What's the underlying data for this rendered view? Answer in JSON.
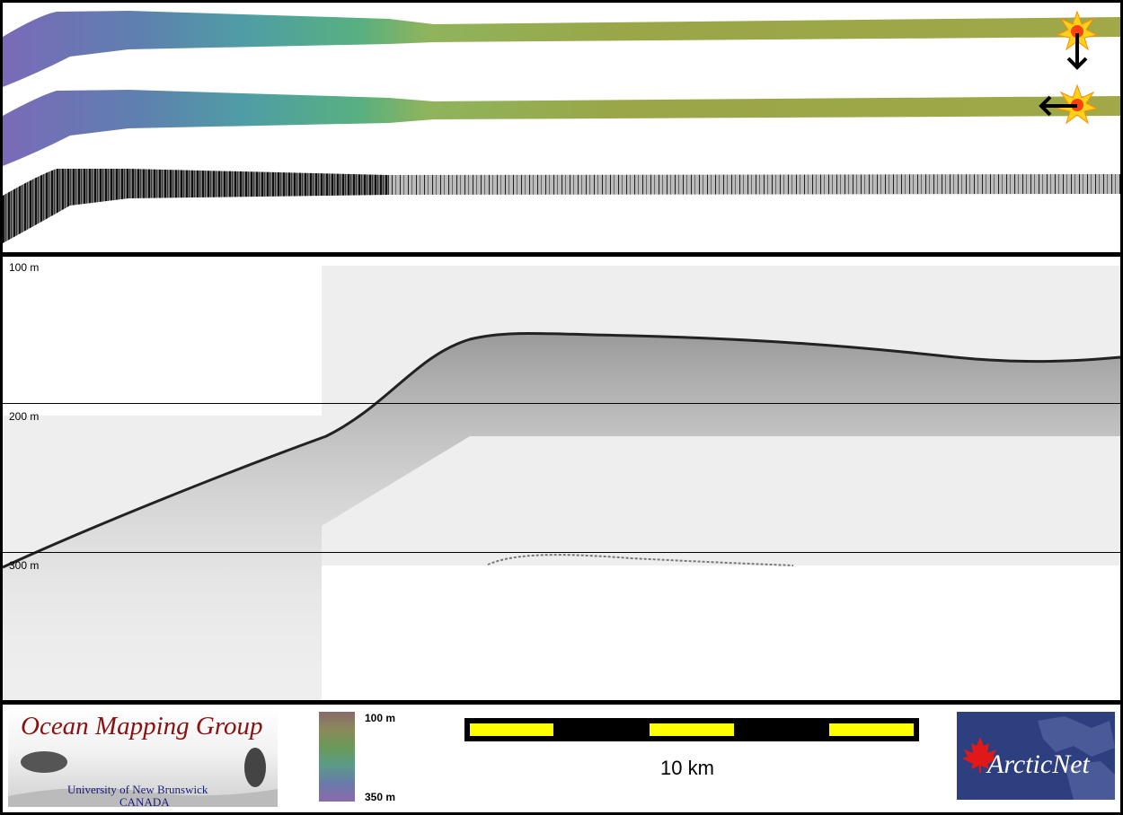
{
  "profile": {
    "depth_labels": [
      "100 m",
      "200 m",
      "300 m"
    ]
  },
  "footer": {
    "logo": {
      "title": "Ocean Mapping Group",
      "university": "University of New Brunswick",
      "country": "CANADA"
    },
    "colorbar": {
      "top_label": "100 m",
      "bottom_label": "350 m"
    },
    "scalebar": {
      "label": "10 km"
    },
    "partner_logo": {
      "text": "ArcticNet"
    }
  },
  "colors": {
    "frame": "#000000",
    "panel": "#ffffff",
    "sonar_background": "#eeeeee",
    "scalebar_fill": "#ffff00",
    "scalebar_dark": "#000000",
    "logo_title": "#8b1010",
    "arcticnet_bg": "#2e3f7f"
  },
  "icons": [
    "sun-marker-icon",
    "arrow-down-icon",
    "arrow-left-icon",
    "maple-leaf-icon"
  ]
}
